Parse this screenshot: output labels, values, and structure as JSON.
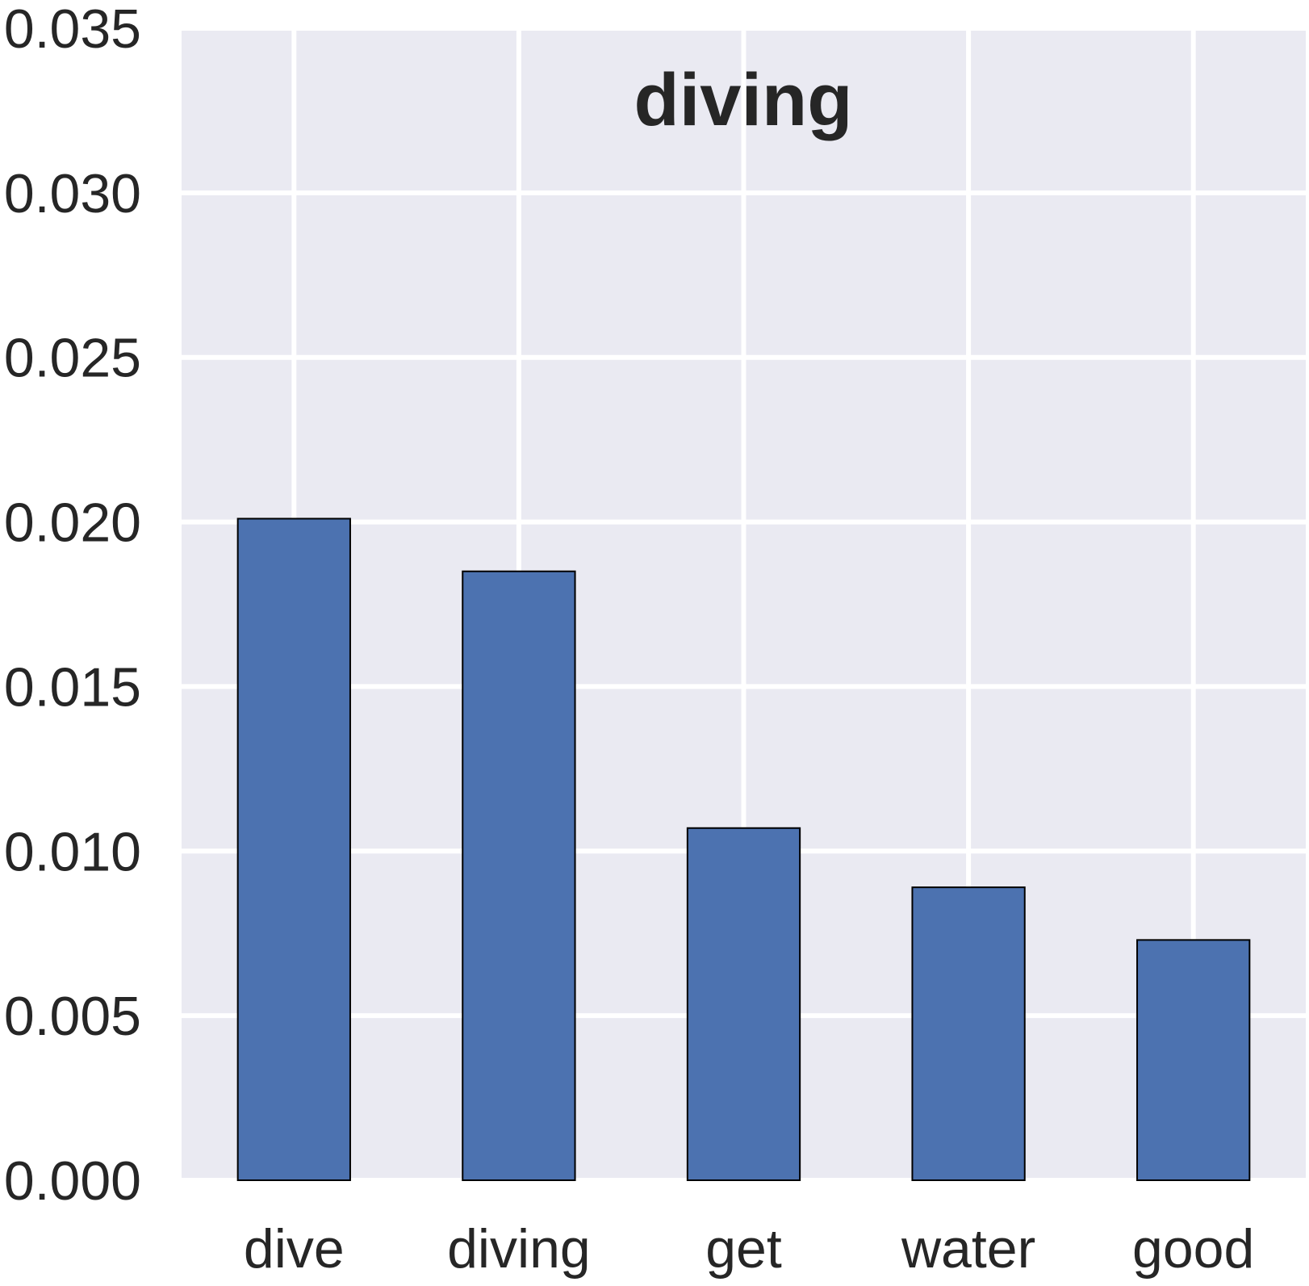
{
  "chart_data": {
    "type": "bar",
    "title": "diving",
    "xlabel": "",
    "ylabel": "",
    "categories": [
      "dive",
      "diving",
      "get",
      "water",
      "good"
    ],
    "values": [
      0.0201,
      0.0185,
      0.0107,
      0.0089,
      0.0073
    ],
    "ylim": [
      0,
      0.035
    ],
    "yticks": [
      "0.000",
      "0.005",
      "0.010",
      "0.015",
      "0.020",
      "0.025",
      "0.030",
      "0.035"
    ],
    "grid": true,
    "legend": "none",
    "colors": {
      "bar_fill": "#4c72b0",
      "bar_edge": "#000000",
      "plot_background": "#eaeaf2",
      "grid": "#ffffff",
      "text": "#262626"
    }
  }
}
